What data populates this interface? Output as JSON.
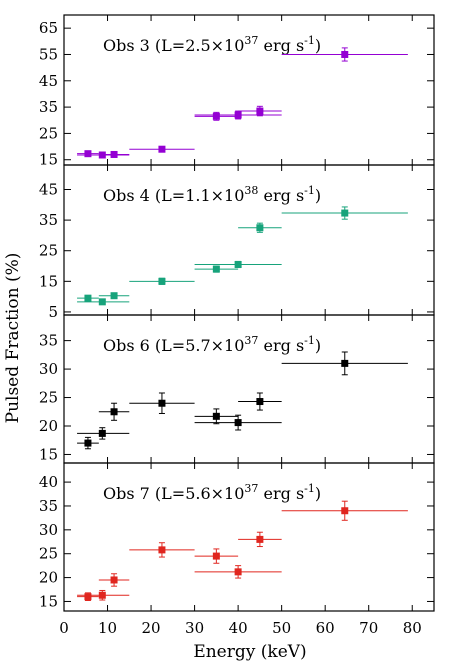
{
  "chart_data": {
    "type": "scatter",
    "xlabel": "Energy (keV)",
    "ylabel": "Pulsed Fraction (%)",
    "xlim": [
      0,
      85
    ],
    "xticks": [
      "0",
      "10",
      "20",
      "30",
      "40",
      "50",
      "60",
      "70",
      "80"
    ],
    "grid": false,
    "panels": [
      {
        "name": "Obs 3",
        "title": {
          "prefix": "Obs 3 (L=2.5×10",
          "exp": "37",
          "unit": " erg s",
          "unit_exp": "-1",
          "suffix": ")"
        },
        "color": "#9400d3",
        "ylim": [
          13,
          70
        ],
        "yticks": [
          15,
          25,
          35,
          45,
          55,
          65
        ],
        "points": [
          {
            "x": 5.5,
            "xlo": 3,
            "xhi": 8,
            "y": 17.3,
            "err": 0.8
          },
          {
            "x": 8.8,
            "xlo": 3,
            "xhi": 15,
            "y": 16.8,
            "err": 0.8
          },
          {
            "x": 11.5,
            "xlo": 8,
            "xhi": 15,
            "y": 17.0,
            "err": 0.8
          },
          {
            "x": 22.5,
            "xlo": 15,
            "xhi": 30,
            "y": 19.0,
            "err": 1.0
          },
          {
            "x": 35,
            "xlo": 30,
            "xhi": 40,
            "y": 31.5,
            "err": 1.5
          },
          {
            "x": 40,
            "xlo": 30,
            "xhi": 50,
            "y": 32.0,
            "err": 1.5
          },
          {
            "x": 45,
            "xlo": 40,
            "xhi": 50,
            "y": 33.5,
            "err": 1.8
          },
          {
            "x": 64.5,
            "xlo": 50,
            "xhi": 79,
            "y": 55.0,
            "err": 2.5
          }
        ]
      },
      {
        "name": "Obs 4",
        "title": {
          "prefix": "Obs 4 (L=1.1×10",
          "exp": "38",
          "unit": " erg s",
          "unit_exp": "-1",
          "suffix": ")"
        },
        "color": "#17a37b",
        "ylim": [
          4,
          53
        ],
        "yticks": [
          5,
          15,
          25,
          35,
          45
        ],
        "points": [
          {
            "x": 5.5,
            "xlo": 3,
            "xhi": 8,
            "y": 9.5,
            "err": 0.8
          },
          {
            "x": 8.8,
            "xlo": 3,
            "xhi": 15,
            "y": 8.3,
            "err": 0.8
          },
          {
            "x": 11.5,
            "xlo": 8,
            "xhi": 15,
            "y": 10.3,
            "err": 0.8
          },
          {
            "x": 22.5,
            "xlo": 15,
            "xhi": 30,
            "y": 15.0,
            "err": 1.0
          },
          {
            "x": 35,
            "xlo": 30,
            "xhi": 40,
            "y": 19.0,
            "err": 1.0
          },
          {
            "x": 40,
            "xlo": 30,
            "xhi": 50,
            "y": 20.5,
            "err": 1.0
          },
          {
            "x": 45,
            "xlo": 40,
            "xhi": 50,
            "y": 32.5,
            "err": 1.5
          },
          {
            "x": 64.5,
            "xlo": 50,
            "xhi": 79,
            "y": 37.3,
            "err": 2.0
          }
        ]
      },
      {
        "name": "Obs 6",
        "title": {
          "prefix": "Obs 6 (L=5.7×10",
          "exp": "37",
          "unit": " erg s",
          "unit_exp": "-1",
          "suffix": ")"
        },
        "color": "#000000",
        "ylim": [
          13.5,
          39.5
        ],
        "yticks": [
          15,
          20,
          25,
          30,
          35
        ],
        "points": [
          {
            "x": 5.5,
            "xlo": 3,
            "xhi": 8,
            "y": 17.0,
            "err": 1.0
          },
          {
            "x": 8.8,
            "xlo": 3,
            "xhi": 15,
            "y": 18.7,
            "err": 1.0
          },
          {
            "x": 11.5,
            "xlo": 8,
            "xhi": 15,
            "y": 22.5,
            "err": 1.5
          },
          {
            "x": 22.5,
            "xlo": 15,
            "xhi": 30,
            "y": 24.0,
            "err": 1.8
          },
          {
            "x": 35,
            "xlo": 30,
            "xhi": 40,
            "y": 21.7,
            "err": 1.3
          },
          {
            "x": 40,
            "xlo": 30,
            "xhi": 50,
            "y": 20.6,
            "err": 1.3
          },
          {
            "x": 45,
            "xlo": 40,
            "xhi": 50,
            "y": 24.3,
            "err": 1.5
          },
          {
            "x": 64.5,
            "xlo": 50,
            "xhi": 79,
            "y": 31.0,
            "err": 2.0
          }
        ]
      },
      {
        "name": "Obs 7",
        "title": {
          "prefix": "Obs 7 (L=5.6×10",
          "exp": "37",
          "unit": " erg s",
          "unit_exp": "-1",
          "suffix": ")"
        },
        "color": "#e0261f",
        "ylim": [
          13,
          44
        ],
        "yticks": [
          15,
          20,
          25,
          30,
          35,
          40
        ],
        "points": [
          {
            "x": 5.5,
            "xlo": 3,
            "xhi": 8,
            "y": 16.0,
            "err": 0.8
          },
          {
            "x": 8.8,
            "xlo": 3,
            "xhi": 15,
            "y": 16.3,
            "err": 1.0
          },
          {
            "x": 11.5,
            "xlo": 8,
            "xhi": 15,
            "y": 19.5,
            "err": 1.3
          },
          {
            "x": 22.5,
            "xlo": 15,
            "xhi": 30,
            "y": 25.8,
            "err": 1.5
          },
          {
            "x": 35,
            "xlo": 30,
            "xhi": 40,
            "y": 24.5,
            "err": 1.5
          },
          {
            "x": 40,
            "xlo": 30,
            "xhi": 50,
            "y": 21.2,
            "err": 1.3
          },
          {
            "x": 45,
            "xlo": 40,
            "xhi": 50,
            "y": 28.0,
            "err": 1.5
          },
          {
            "x": 64.5,
            "xlo": 50,
            "xhi": 79,
            "y": 34.0,
            "err": 2.0
          }
        ]
      }
    ]
  }
}
